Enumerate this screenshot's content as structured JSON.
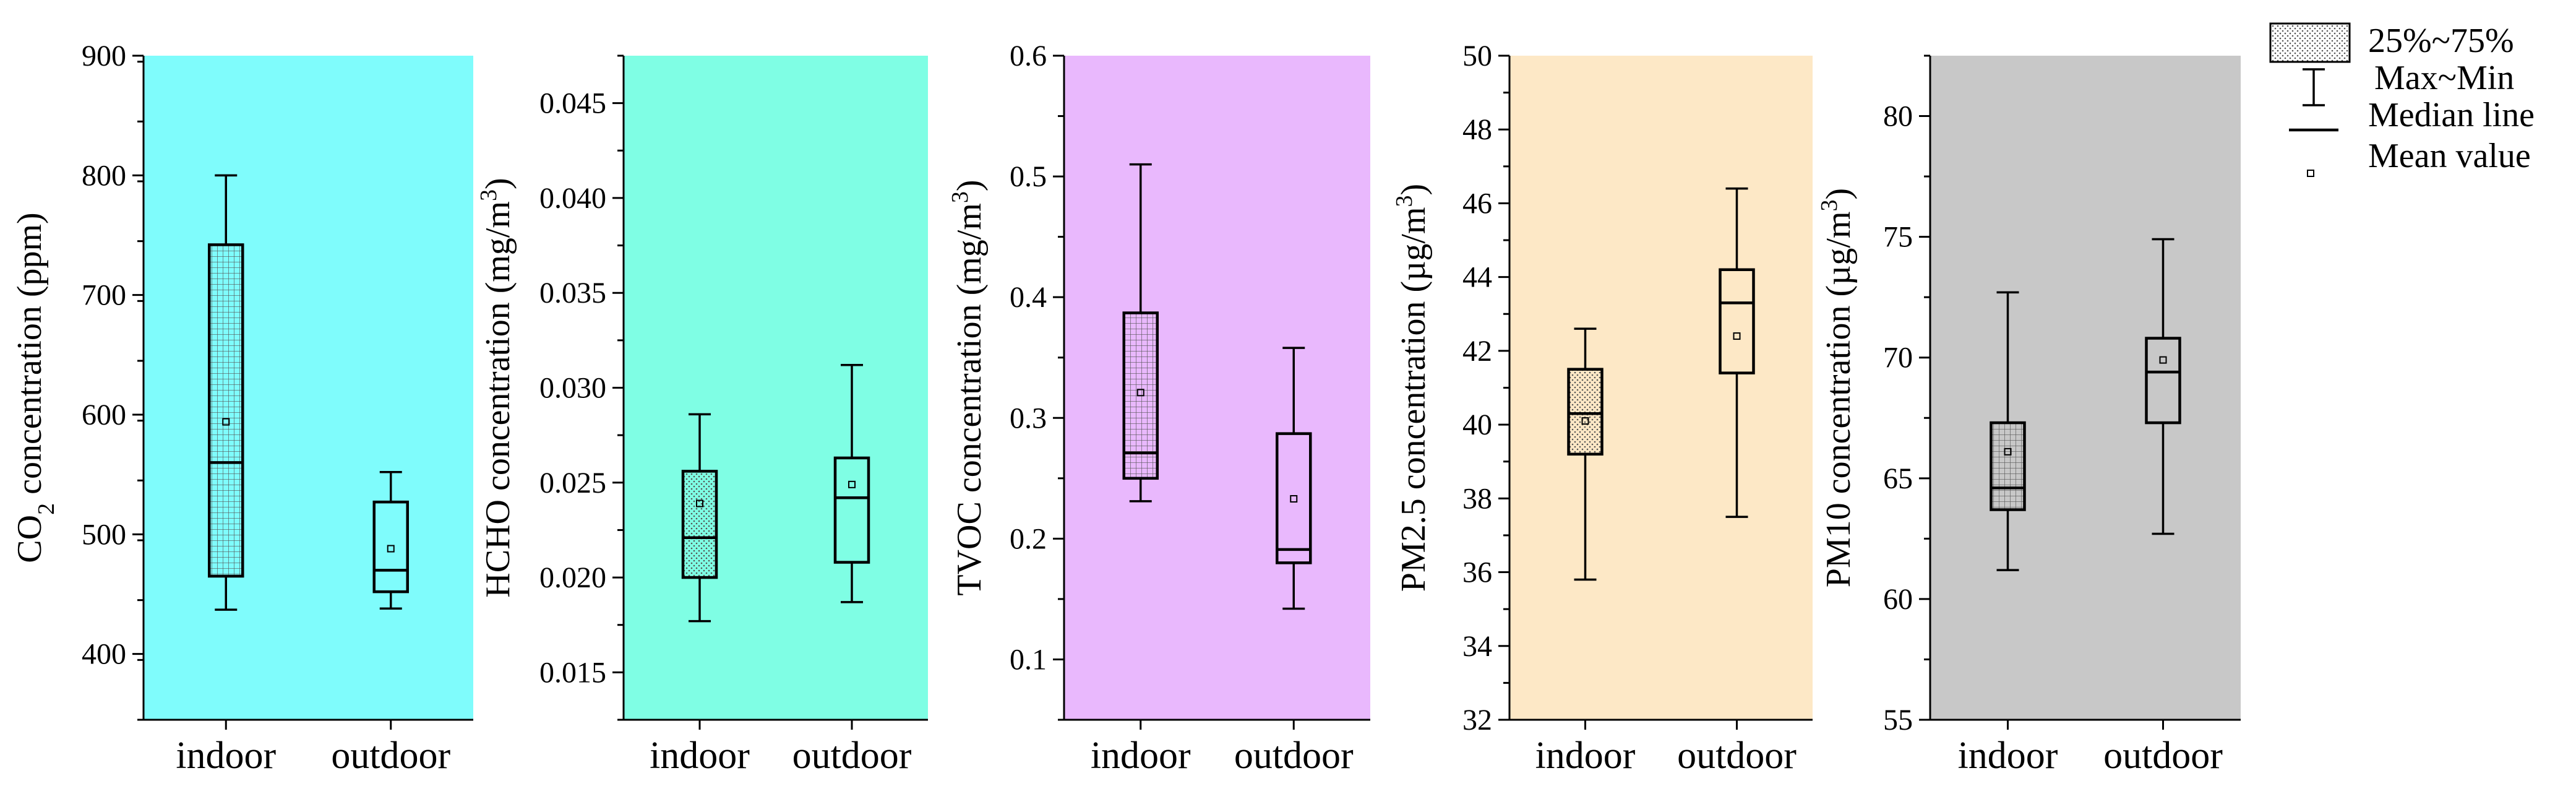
{
  "chart_data": [
    {
      "type": "box",
      "categories": [
        "indoor",
        "outdoor"
      ],
      "ylabel_main": "CO",
      "ylabel_sub": "2",
      "ylabel_rest": " concentration (ppm)",
      "ylim": [
        345,
        900
      ],
      "yticks": [
        400,
        500,
        600,
        700,
        800,
        900
      ],
      "tick_labels": [
        "400",
        "500",
        "600",
        "700",
        "800",
        "900"
      ],
      "minor_step": 50,
      "background": "#7ffcfc",
      "patterns": [
        "grid",
        "none"
      ],
      "boxes": [
        {
          "min": 437,
          "q1": 465,
          "median": 560,
          "q3": 742,
          "max": 800,
          "mean": 594
        },
        {
          "min": 438,
          "q1": 452,
          "median": 470,
          "q3": 527,
          "max": 552,
          "mean": 488
        }
      ]
    },
    {
      "type": "box",
      "categories": [
        "indoor",
        "outdoor"
      ],
      "ylabel_main": "HCHO concentration (mg/m",
      "ylabel_sup": "3",
      "ylabel_close": ")",
      "ylim": [
        0.0125,
        0.0475
      ],
      "yticks": [
        0.015,
        0.02,
        0.025,
        0.03,
        0.035,
        0.04,
        0.045
      ],
      "tick_labels": [
        "0.015",
        "0.020",
        "0.025",
        "0.030",
        "0.035",
        "0.040",
        "0.045"
      ],
      "minor_step": 0.0025,
      "background": "#7ffee4",
      "patterns": [
        "dots",
        "none"
      ],
      "boxes": [
        {
          "min": 0.0177,
          "q1": 0.02,
          "median": 0.0221,
          "q3": 0.0256,
          "max": 0.0286,
          "mean": 0.0239
        },
        {
          "min": 0.0187,
          "q1": 0.0208,
          "median": 0.0242,
          "q3": 0.0263,
          "max": 0.0312,
          "mean": 0.0249
        }
      ]
    },
    {
      "type": "box",
      "categories": [
        "indoor",
        "outdoor"
      ],
      "ylabel_main": "TVOC concentration (mg/m",
      "ylabel_sup": "3",
      "ylabel_close": ")",
      "ylim": [
        0.05,
        0.6
      ],
      "yticks": [
        0.1,
        0.2,
        0.3,
        0.4,
        0.5,
        0.6
      ],
      "tick_labels": [
        "0.1",
        "0.2",
        "0.3",
        "0.4",
        "0.5",
        "0.6"
      ],
      "minor_step": 0.05,
      "background": "#e9b8fd",
      "patterns": [
        "grid",
        "none"
      ],
      "boxes": [
        {
          "min": 0.231,
          "q1": 0.25,
          "median": 0.271,
          "q3": 0.387,
          "max": 0.51,
          "mean": 0.321
        },
        {
          "min": 0.142,
          "q1": 0.18,
          "median": 0.191,
          "q3": 0.287,
          "max": 0.358,
          "mean": 0.233
        }
      ]
    },
    {
      "type": "box",
      "categories": [
        "indoor",
        "outdoor"
      ],
      "ylabel_main": "PM2.5 concentration (µg/m",
      "ylabel_sup": "3",
      "ylabel_close": ")",
      "ylim": [
        32,
        50
      ],
      "yticks": [
        32,
        34,
        36,
        38,
        40,
        42,
        44,
        46,
        48,
        50
      ],
      "tick_labels": [
        "32",
        "34",
        "36",
        "38",
        "40",
        "42",
        "44",
        "46",
        "48",
        "50"
      ],
      "minor_step": 1,
      "background": "#fde8c6",
      "patterns": [
        "dots",
        "none"
      ],
      "boxes": [
        {
          "min": 35.8,
          "q1": 39.2,
          "median": 40.3,
          "q3": 41.5,
          "max": 42.6,
          "mean": 40.1
        },
        {
          "min": 37.5,
          "q1": 41.4,
          "median": 43.3,
          "q3": 44.2,
          "max": 46.4,
          "mean": 42.4
        }
      ]
    },
    {
      "type": "box",
      "categories": [
        "indoor",
        "outdoor"
      ],
      "ylabel_main": "PM10 concentration (µg/m",
      "ylabel_sup": "3",
      "ylabel_close": ")",
      "ylim": [
        55,
        82.5
      ],
      "yticks": [
        55,
        60,
        65,
        70,
        75,
        80
      ],
      "tick_labels": [
        "55",
        "60",
        "65",
        "70",
        "75",
        "80"
      ],
      "minor_step": 2.5,
      "background": "#c8c8c8",
      "patterns": [
        "grid",
        "none"
      ],
      "boxes": [
        {
          "min": 61.2,
          "q1": 63.7,
          "median": 64.6,
          "q3": 67.3,
          "max": 72.7,
          "mean": 66.1
        },
        {
          "min": 62.7,
          "q1": 67.3,
          "median": 69.4,
          "q3": 70.8,
          "max": 74.9,
          "mean": 69.9
        }
      ]
    }
  ],
  "legend": {
    "box_label": "25%~75%",
    "whisker_label": "Max~Min",
    "median_label": "Median line",
    "mean_label": "Mean value"
  }
}
